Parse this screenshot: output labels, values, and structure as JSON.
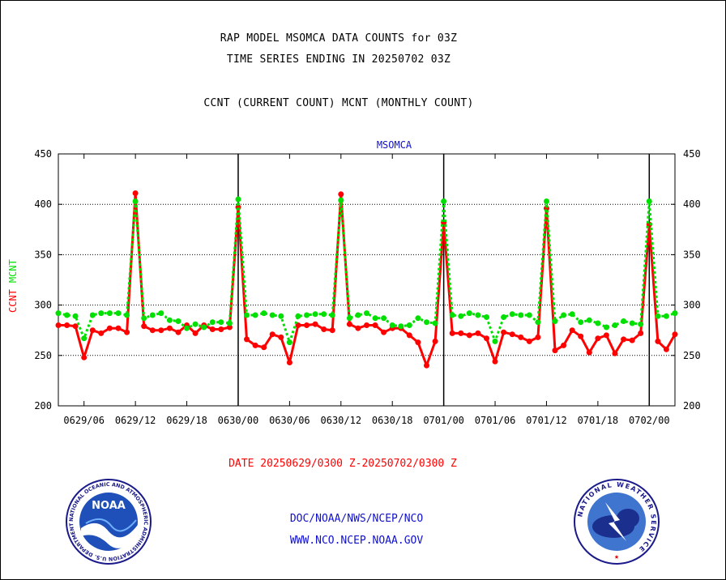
{
  "header": {
    "line1": "RAP MODEL MSOMCA DATA COUNTS for 03Z",
    "line2": "TIME SERIES ENDING IN 20250702 03Z",
    "line3": "CCNT (CURRENT COUNT) MCNT (MONTHLY COUNT)"
  },
  "footer": {
    "date_range": "DATE 20250629/0300 Z-20250702/0300 Z",
    "link1": "DOC/NOAA/NWS/NCEP/NCO",
    "link2": "WWW.NCO.NCEP.NOAA.GOV"
  },
  "logos": {
    "left": "NOAA",
    "right_text": "NATIONAL WEATHER SERVICE",
    "left_text": "NATIONAL OCEANIC AND ATMOSPHERIC ADMINISTRATION U.S. DEPARTMENT OF COMMERCE"
  },
  "colors": {
    "ccnt": "#ff0000",
    "mcnt": "#00e000",
    "station": "#1010d0",
    "grid": "#000000"
  },
  "chart_data": {
    "type": "line",
    "title": "MSOMCA",
    "ylabel_parts": [
      "CCNT",
      "MCNT"
    ],
    "ylim": [
      200,
      450
    ],
    "yticks": [
      200,
      250,
      300,
      350,
      400,
      450
    ],
    "xlim_hours": [
      0,
      72
    ],
    "xtick_labels": [
      "0629/06",
      "0629/12",
      "0629/18",
      "0630/00",
      "0630/06",
      "0630/12",
      "0630/18",
      "0701/00",
      "0701/06",
      "0701/12",
      "0701/18",
      "0702/00"
    ],
    "xtick_hours": [
      3,
      9,
      15,
      21,
      27,
      33,
      39,
      45,
      51,
      57,
      63,
      69
    ],
    "day_lines_hours": [
      21,
      45,
      69
    ],
    "grid": "horizontal dotted",
    "series": [
      {
        "name": "CCNT",
        "color": "#ff0000",
        "values": [
          280,
          280,
          279,
          248,
          275,
          272,
          277,
          277,
          273,
          411,
          279,
          275,
          275,
          277,
          273,
          280,
          272,
          280,
          276,
          276,
          278,
          397,
          266,
          260,
          258,
          271,
          268,
          243,
          280,
          280,
          281,
          276,
          275,
          410,
          281,
          277,
          280,
          280,
          273,
          277,
          277,
          270,
          263,
          240,
          264,
          382,
          272,
          272,
          270,
          272,
          267,
          244,
          273,
          271,
          268,
          264,
          268,
          396,
          255,
          260,
          275,
          269,
          253,
          267,
          270,
          252,
          266,
          265,
          272,
          380,
          264,
          256,
          271
        ]
      },
      {
        "name": "MCNT",
        "color": "#00e000",
        "values": [
          292,
          290,
          289,
          267,
          290,
          292,
          292,
          292,
          290,
          403,
          287,
          290,
          292,
          285,
          284,
          277,
          281,
          278,
          283,
          283,
          282,
          405,
          290,
          290,
          292,
          290,
          289,
          263,
          289,
          290,
          291,
          291,
          290,
          404,
          287,
          290,
          292,
          287,
          287,
          280,
          279,
          280,
          287,
          283,
          282,
          403,
          290,
          289,
          292,
          290,
          288,
          264,
          288,
          291,
          290,
          290,
          283,
          403,
          284,
          290,
          291,
          283,
          285,
          282,
          278,
          280,
          284,
          282,
          281,
          403,
          289,
          289,
          292
        ]
      }
    ]
  }
}
